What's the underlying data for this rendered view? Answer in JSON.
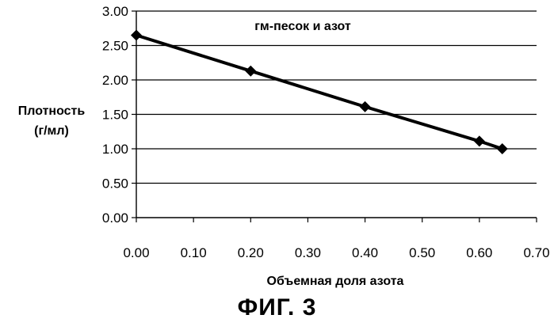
{
  "chart_data": {
    "type": "line",
    "title": "гм-песок и азот",
    "xlabel": "Объемная доля азота",
    "ylabel_line1": "Плотность",
    "ylabel_line2": "(г/мл)",
    "xlim": [
      0.0,
      0.7
    ],
    "ylim": [
      0.0,
      3.0
    ],
    "x_ticks": [
      "0.00",
      "0.10",
      "0.20",
      "0.30",
      "0.40",
      "0.50",
      "0.60",
      "0.70"
    ],
    "y_ticks": [
      "0.00",
      "0.50",
      "1.00",
      "1.50",
      "2.00",
      "2.50",
      "3.00"
    ],
    "grid": true,
    "legend": "none",
    "marker": "diamond",
    "series": [
      {
        "x": [
          0.0,
          0.2,
          0.4,
          0.6,
          0.64
        ],
        "values": [
          2.65,
          2.13,
          1.61,
          1.11,
          1.0
        ]
      }
    ],
    "line_color": "#000000"
  },
  "caption": "ФИГ. 3"
}
